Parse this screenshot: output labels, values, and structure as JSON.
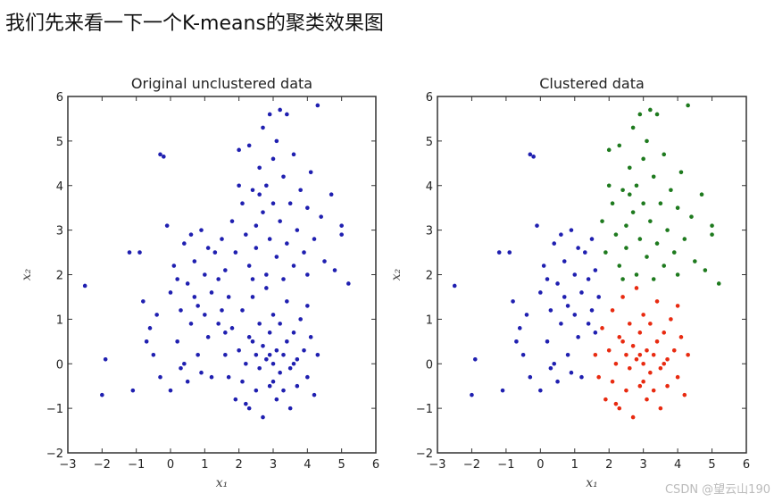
{
  "heading": "我们先来看一下一个K-means的聚类效果图",
  "watermark": "CSDN @望云山190",
  "colors": {
    "unclustered": "#1f1fb0",
    "blue": "#1f1fb0",
    "green": "#1e7a1e",
    "red": "#e82a10"
  },
  "chart_data": [
    {
      "type": "scatter",
      "title": "Original unclustered data",
      "xlabel": "x1",
      "ylabel": "x2",
      "xlim": [
        -3,
        6
      ],
      "ylim": [
        -2,
        6
      ],
      "xticks": [
        -3,
        -2,
        -1,
        0,
        1,
        2,
        3,
        4,
        5,
        6
      ],
      "yticks": [
        -2,
        -1,
        0,
        1,
        2,
        3,
        4,
        5,
        6
      ],
      "clustered": false
    },
    {
      "type": "scatter",
      "title": "Clustered data",
      "xlabel": "x1",
      "ylabel": "x2",
      "xlim": [
        -3,
        6
      ],
      "ylim": [
        -2,
        6
      ],
      "xticks": [
        -3,
        -2,
        -1,
        0,
        1,
        2,
        3,
        4,
        5,
        6
      ],
      "yticks": [
        -2,
        -1,
        0,
        1,
        2,
        3,
        4,
        5,
        6
      ],
      "clustered": true
    }
  ],
  "clusters": [
    {
      "name": "blue",
      "points": [
        [
          -2.5,
          1.75
        ],
        [
          -2.0,
          -0.7
        ],
        [
          -1.9,
          0.1
        ],
        [
          -1.1,
          -0.6
        ],
        [
          -1.2,
          2.5
        ],
        [
          -0.9,
          2.5
        ],
        [
          -0.8,
          1.4
        ],
        [
          -0.6,
          0.8
        ],
        [
          -0.5,
          0.2
        ],
        [
          -0.3,
          4.7
        ],
        [
          -0.2,
          4.65
        ],
        [
          -0.3,
          -0.3
        ],
        [
          -0.1,
          3.1
        ],
        [
          0.0,
          -0.6
        ],
        [
          0.0,
          1.6
        ],
        [
          0.1,
          2.2
        ],
        [
          0.2,
          0.5
        ],
        [
          0.3,
          1.2
        ],
        [
          0.3,
          -0.1
        ],
        [
          0.4,
          2.7
        ],
        [
          0.5,
          1.8
        ],
        [
          0.5,
          -0.4
        ],
        [
          0.6,
          0.9
        ],
        [
          0.7,
          2.3
        ],
        [
          0.7,
          1.5
        ],
        [
          0.8,
          0.2
        ],
        [
          0.9,
          3.0
        ],
        [
          0.9,
          -0.2
        ],
        [
          1.0,
          1.1
        ],
        [
          1.0,
          2.0
        ],
        [
          1.1,
          0.6
        ],
        [
          1.2,
          1.6
        ],
        [
          1.2,
          -0.3
        ],
        [
          1.3,
          2.5
        ],
        [
          1.4,
          0.9
        ],
        [
          1.4,
          1.9
        ],
        [
          1.5,
          1.2
        ],
        [
          1.6,
          0.7
        ],
        [
          1.6,
          2.1
        ],
        [
          1.7,
          1.5
        ],
        [
          0.2,
          1.9
        ],
        [
          -0.4,
          1.1
        ],
        [
          0.6,
          2.9
        ],
        [
          1.1,
          2.6
        ],
        [
          -0.7,
          0.5
        ],
        [
          0.4,
          0.0
        ],
        [
          1.5,
          2.8
        ],
        [
          0.8,
          1.3
        ]
      ]
    },
    {
      "name": "green",
      "points": [
        [
          1.8,
          3.2
        ],
        [
          1.9,
          2.5
        ],
        [
          2.0,
          4.0
        ],
        [
          2.0,
          4.8
        ],
        [
          2.1,
          3.6
        ],
        [
          2.2,
          2.9
        ],
        [
          2.3,
          4.9
        ],
        [
          2.3,
          2.2
        ],
        [
          2.4,
          3.9
        ],
        [
          2.5,
          3.1
        ],
        [
          2.5,
          2.6
        ],
        [
          2.6,
          4.4
        ],
        [
          2.7,
          5.3
        ],
        [
          2.7,
          3.4
        ],
        [
          2.8,
          2.0
        ],
        [
          2.8,
          4.0
        ],
        [
          2.9,
          5.6
        ],
        [
          2.9,
          2.8
        ],
        [
          3.0,
          3.6
        ],
        [
          3.0,
          4.6
        ],
        [
          3.1,
          2.4
        ],
        [
          3.1,
          5.0
        ],
        [
          3.2,
          3.2
        ],
        [
          3.3,
          1.9
        ],
        [
          3.3,
          4.2
        ],
        [
          3.4,
          2.7
        ],
        [
          3.4,
          5.6
        ],
        [
          3.5,
          3.6
        ],
        [
          3.6,
          2.2
        ],
        [
          3.6,
          4.7
        ],
        [
          3.7,
          3.0
        ],
        [
          3.8,
          3.9
        ],
        [
          3.9,
          2.5
        ],
        [
          4.0,
          3.5
        ],
        [
          4.1,
          4.3
        ],
        [
          4.2,
          2.8
        ],
        [
          4.3,
          5.8
        ],
        [
          4.4,
          3.3
        ],
        [
          4.5,
          2.3
        ],
        [
          4.7,
          3.8
        ],
        [
          4.8,
          2.1
        ],
        [
          5.0,
          3.1
        ],
        [
          5.0,
          2.9
        ],
        [
          5.2,
          1.8
        ],
        [
          3.2,
          5.7
        ],
        [
          2.4,
          1.9
        ],
        [
          4.0,
          2.0
        ],
        [
          2.6,
          3.8
        ]
      ]
    },
    {
      "name": "red",
      "points": [
        [
          1.6,
          0.2
        ],
        [
          1.7,
          -0.3
        ],
        [
          1.8,
          0.8
        ],
        [
          1.9,
          -0.8
        ],
        [
          2.0,
          0.3
        ],
        [
          2.1,
          1.2
        ],
        [
          2.1,
          -0.4
        ],
        [
          2.2,
          0.0
        ],
        [
          2.3,
          0.6
        ],
        [
          2.3,
          -1.0
        ],
        [
          2.4,
          1.5
        ],
        [
          2.5,
          0.2
        ],
        [
          2.5,
          -0.6
        ],
        [
          2.6,
          0.9
        ],
        [
          2.6,
          -0.1
        ],
        [
          2.7,
          0.4
        ],
        [
          2.7,
          -1.2
        ],
        [
          2.8,
          1.7
        ],
        [
          2.8,
          0.1
        ],
        [
          2.9,
          -0.5
        ],
        [
          2.9,
          0.7
        ],
        [
          3.0,
          0.0
        ],
        [
          3.0,
          1.1
        ],
        [
          3.1,
          -0.8
        ],
        [
          3.1,
          0.3
        ],
        [
          3.2,
          -0.2
        ],
        [
          3.2,
          0.9
        ],
        [
          3.3,
          0.2
        ],
        [
          3.3,
          -0.6
        ],
        [
          3.4,
          1.4
        ],
        [
          3.4,
          0.5
        ],
        [
          3.5,
          -0.1
        ],
        [
          3.5,
          -1.0
        ],
        [
          3.6,
          0.7
        ],
        [
          3.7,
          0.1
        ],
        [
          3.7,
          -0.5
        ],
        [
          3.8,
          1.0
        ],
        [
          3.9,
          0.3
        ],
        [
          4.0,
          -0.3
        ],
        [
          4.1,
          0.6
        ],
        [
          4.2,
          -0.7
        ],
        [
          4.3,
          0.2
        ],
        [
          4.0,
          1.3
        ],
        [
          2.2,
          -0.9
        ],
        [
          3.0,
          -0.4
        ],
        [
          2.4,
          0.5
        ],
        [
          3.6,
          0.0
        ],
        [
          2.9,
          0.2
        ]
      ]
    }
  ]
}
